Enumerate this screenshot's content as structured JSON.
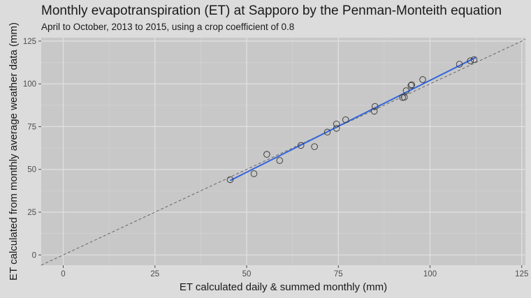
{
  "chart_data": {
    "type": "scatter",
    "title": "Monthly evapotranspiration (ET) at Sapporo by the Penman-Monteith equation",
    "subtitle": "April to October, 2013 to 2015, using a crop coefficient of 0.8",
    "xlabel": "ET calculated daily & summed monthly (mm)",
    "ylabel": "ET calculated from monthly average weather data (mm)",
    "xlim": [
      -6,
      126
    ],
    "ylim": [
      -6,
      127
    ],
    "xticks": [
      0,
      25,
      50,
      75,
      100,
      125
    ],
    "yticks": [
      0,
      25,
      50,
      75,
      100,
      125
    ],
    "grid": true,
    "colors": {
      "panel": "#c8c8c8",
      "points": "#333333",
      "fit_line": "#3366dd",
      "reference_line": "#666666"
    },
    "reference_line": {
      "style": "dashed",
      "slope": 1,
      "intercept": 0
    },
    "fit_line": {
      "x": [
        45.5,
        112.5
      ],
      "y": [
        43.5,
        115.5
      ]
    },
    "points": [
      {
        "x": 45.5,
        "y": 44.0
      },
      {
        "x": 52.0,
        "y": 47.5
      },
      {
        "x": 55.5,
        "y": 58.8
      },
      {
        "x": 59.0,
        "y": 55.2
      },
      {
        "x": 64.8,
        "y": 64.0
      },
      {
        "x": 68.5,
        "y": 63.3
      },
      {
        "x": 72.0,
        "y": 71.8
      },
      {
        "x": 74.5,
        "y": 74.0
      },
      {
        "x": 74.5,
        "y": 76.5
      },
      {
        "x": 77.0,
        "y": 79.0
      },
      {
        "x": 84.8,
        "y": 84.0
      },
      {
        "x": 85.0,
        "y": 86.8
      },
      {
        "x": 92.5,
        "y": 92.0
      },
      {
        "x": 93.0,
        "y": 92.2
      },
      {
        "x": 93.5,
        "y": 96.0
      },
      {
        "x": 94.8,
        "y": 99.0
      },
      {
        "x": 95.0,
        "y": 99.5
      },
      {
        "x": 98.0,
        "y": 102.5
      },
      {
        "x": 108.0,
        "y": 111.5
      },
      {
        "x": 111.0,
        "y": 113.5
      },
      {
        "x": 112.0,
        "y": 114.2
      }
    ]
  }
}
